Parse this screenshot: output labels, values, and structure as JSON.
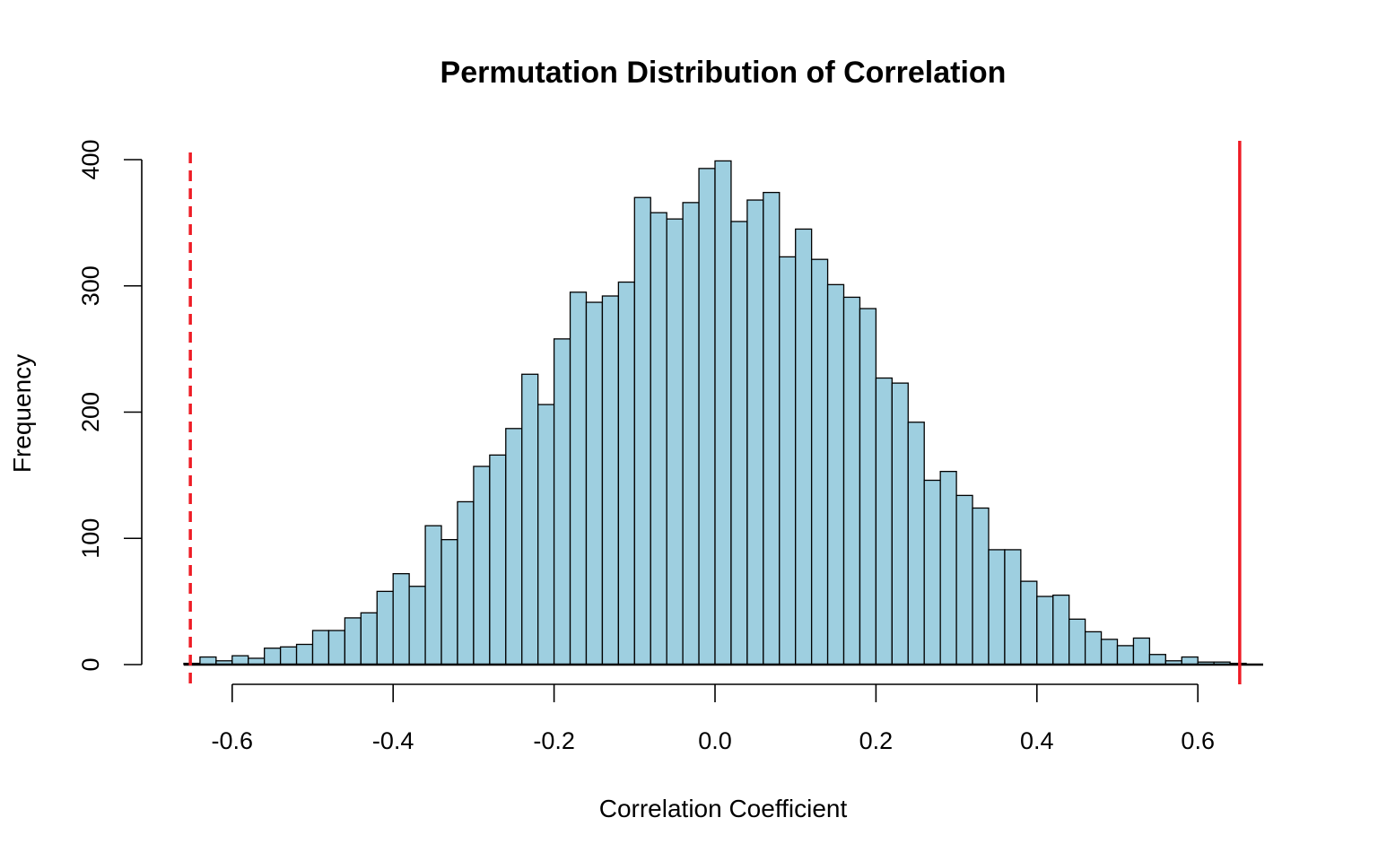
{
  "chart_data": {
    "type": "bar",
    "subtype": "histogram",
    "title": "Permutation Distribution of Correlation",
    "xlabel": "Correlation Coefficient",
    "ylabel": "Frequency",
    "xlim": [
      -0.65,
      0.67
    ],
    "ylim": [
      0,
      400
    ],
    "bin_width": 0.02,
    "bin_start": -0.66,
    "x_ticks": [
      -0.6,
      -0.4,
      -0.2,
      0.0,
      0.2,
      0.4,
      0.6
    ],
    "x_tick_labels": [
      "-0.6",
      "-0.4",
      "-0.2",
      "0.0",
      "0.2",
      "0.4",
      "0.6"
    ],
    "y_ticks": [
      0,
      100,
      200,
      300,
      400
    ],
    "y_tick_labels": [
      "0",
      "100",
      "200",
      "300",
      "400"
    ],
    "values": [
      1,
      6,
      3,
      7,
      5,
      13,
      14,
      16,
      27,
      27,
      37,
      41,
      58,
      72,
      62,
      110,
      99,
      129,
      157,
      166,
      187,
      230,
      206,
      258,
      295,
      287,
      292,
      303,
      370,
      358,
      353,
      366,
      393,
      399,
      351,
      368,
      374,
      323,
      345,
      321,
      301,
      291,
      282,
      227,
      223,
      192,
      146,
      153,
      134,
      124,
      91,
      91,
      66,
      54,
      55,
      36,
      26,
      20,
      15,
      21,
      8,
      3,
      6,
      2,
      2,
      1
    ],
    "vlines": [
      {
        "x": -0.652,
        "style": "dashed",
        "color": "#ee1c25"
      },
      {
        "x": 0.652,
        "style": "solid",
        "color": "#ee1c25"
      }
    ],
    "bar_fill": "#9ecfe0",
    "bar_stroke": "#000000",
    "grid": false,
    "legend": "none"
  }
}
